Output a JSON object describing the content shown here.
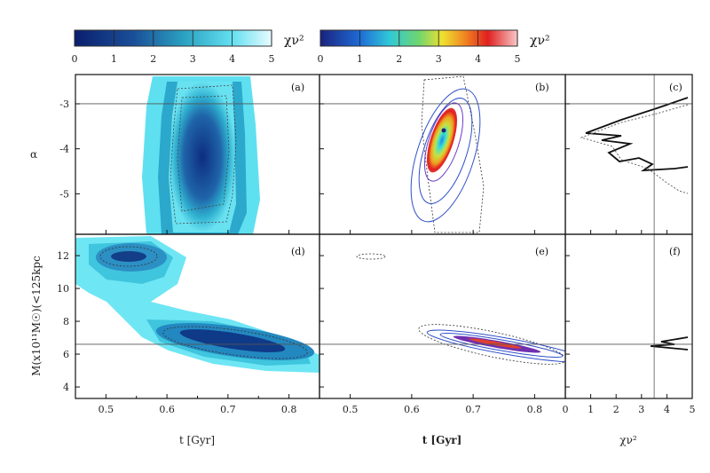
{
  "chart_data": {
    "type": "heatmap",
    "colorbars": [
      {
        "label": "χν²",
        "ticks": [
          "0",
          "1",
          "2",
          "3",
          "4",
          "5"
        ],
        "range": [
          0,
          5
        ],
        "scheme": "blue-cyan"
      },
      {
        "label": "χν²",
        "ticks": [
          "0",
          "1",
          "2",
          "3",
          "4",
          "5"
        ],
        "range": [
          0,
          5
        ],
        "scheme": "rainbow"
      }
    ],
    "panels": [
      {
        "tag": "(a)",
        "xlim": [
          0.45,
          0.85
        ],
        "ylim": [
          -5.9,
          -2.35
        ],
        "hline": -3.0
      },
      {
        "tag": "(b)",
        "xlim": [
          0.45,
          0.85
        ],
        "ylim": [
          -5.9,
          -2.35
        ],
        "hline": -3.0
      },
      {
        "tag": "(c)",
        "xlim": [
          0,
          5
        ],
        "ylim": [
          -5.9,
          -2.35
        ],
        "hline": -3.0,
        "vline": 3.5
      },
      {
        "tag": "(d)",
        "xlim": [
          0.45,
          0.85
        ],
        "ylim": [
          3.3,
          13.3
        ],
        "hline": 6.6
      },
      {
        "tag": "(e)",
        "xlim": [
          0.45,
          0.85
        ],
        "ylim": [
          3.3,
          13.3
        ],
        "hline": 6.6
      },
      {
        "tag": "(f)",
        "xlim": [
          0,
          5
        ],
        "ylim": [
          3.3,
          13.3
        ],
        "hline": 6.6,
        "vline": 3.5
      }
    ],
    "x_ticks_t": [
      "0.5",
      "0.6",
      "0.7",
      "0.8"
    ],
    "x_ticks_chi": [
      "0",
      "1",
      "2",
      "3",
      "4",
      "5"
    ],
    "y_ticks_alpha": [
      "-3",
      "-4",
      "-5"
    ],
    "y_ticks_m": [
      "12",
      "10",
      "8",
      "6",
      "4"
    ],
    "xlabel_left": "t [Gyr]",
    "xlabel_mid": "t [Gyr]",
    "xlabel_right": "χν²",
    "ylabel_top": "α",
    "ylabel_bottom": "M(x10¹¹M☉)(<125kpc"
  }
}
